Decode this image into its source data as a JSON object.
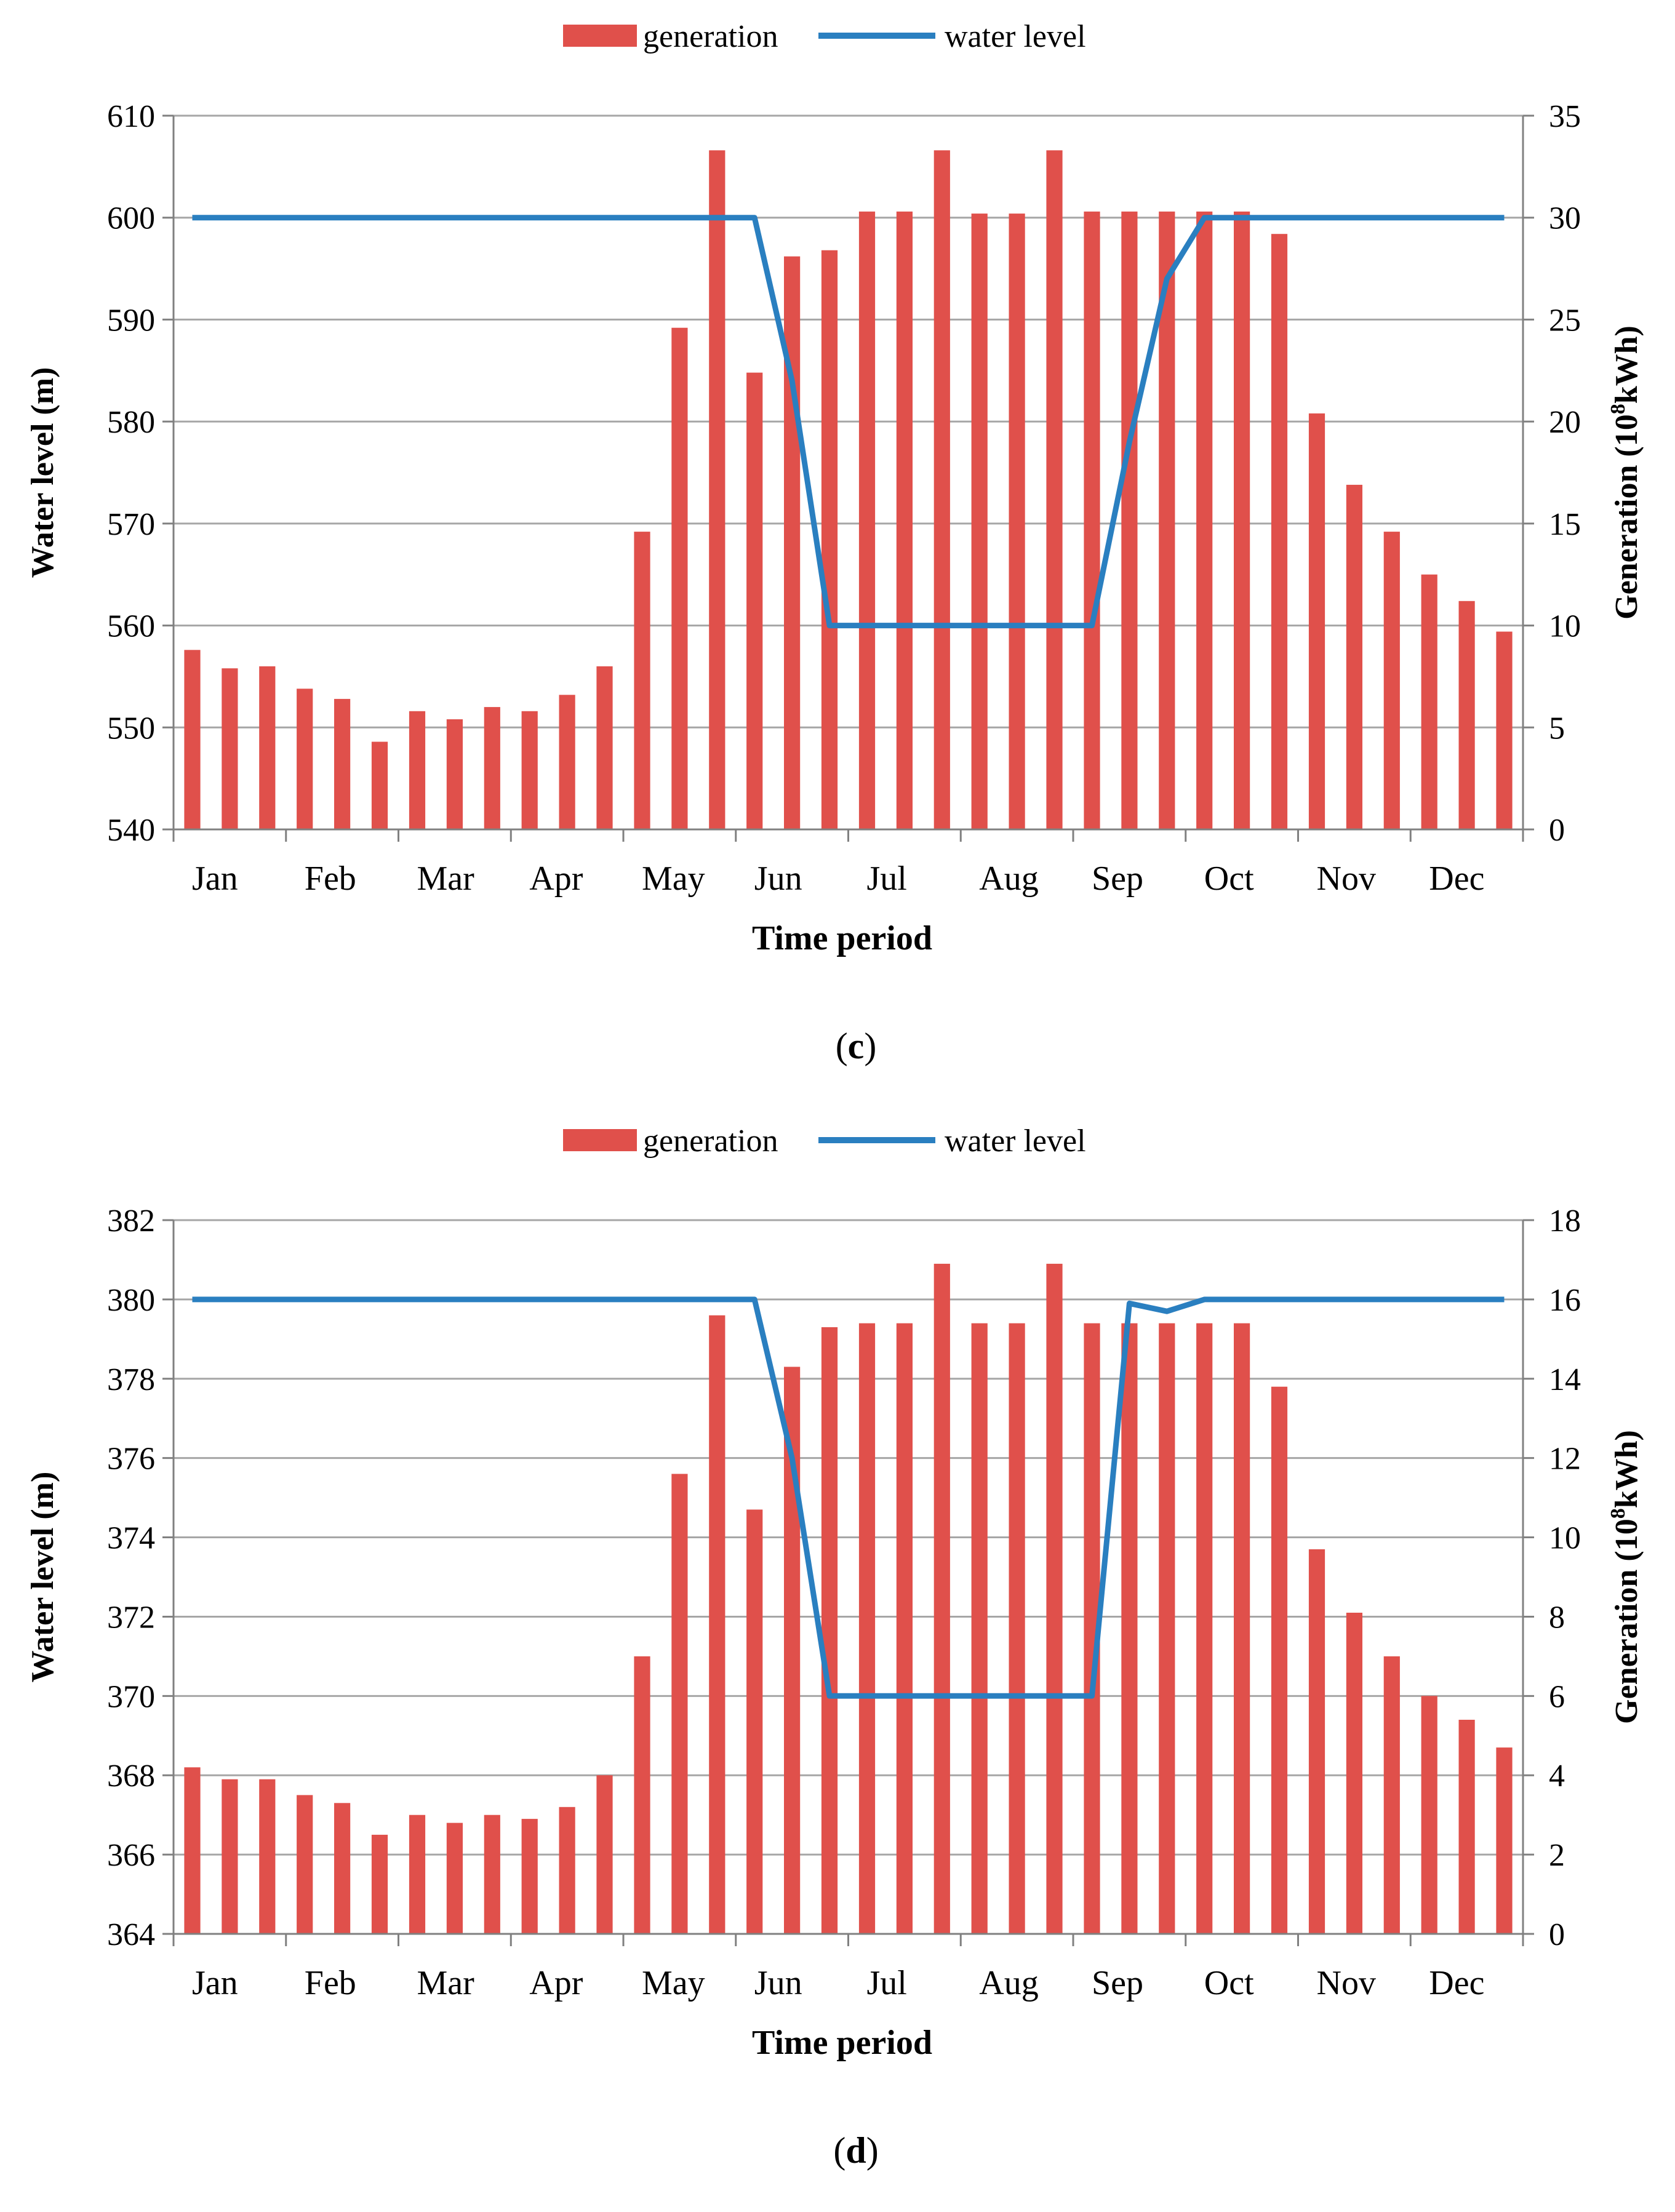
{
  "chart_data": [
    {
      "type": "bar+line",
      "panel_label": "c",
      "legend": {
        "bar": "generation",
        "line": "water level",
        "placement": "top-center"
      },
      "xlabel": "Time period",
      "ylabel_left": "Water level (m)",
      "ylabel_right_prefix": "Generation (10",
      "ylabel_right_sup": "8",
      "ylabel_right_suffix": "kWh)",
      "month_labels": [
        "Jan",
        "Feb",
        "Mar",
        "Apr",
        "May",
        "Jun",
        "Jul",
        "Aug",
        "Sep",
        "Oct",
        "Nov",
        "Dec"
      ],
      "periods_per_month": 3,
      "left_axis": {
        "min": 540,
        "max": 610,
        "step": 10
      },
      "right_axis": {
        "min": 0,
        "max": 35,
        "step": 5
      },
      "grid": true,
      "generation": [
        8.8,
        7.9,
        8.0,
        6.9,
        6.4,
        4.3,
        5.8,
        5.4,
        6.0,
        5.8,
        6.6,
        8.0,
        14.6,
        24.6,
        33.3,
        22.4,
        28.1,
        28.4,
        30.3,
        30.3,
        33.3,
        30.2,
        30.2,
        33.3,
        30.3,
        30.3,
        30.3,
        30.3,
        30.3,
        29.2,
        20.4,
        16.9,
        14.6,
        12.5,
        11.2,
        9.7
      ],
      "water_level": [
        600,
        600,
        600,
        600,
        600,
        600,
        600,
        600,
        600,
        600,
        600,
        600,
        600,
        600,
        600,
        600,
        584,
        560,
        560,
        560,
        560,
        560,
        560,
        560,
        560,
        578,
        594,
        600,
        600,
        600,
        600,
        600,
        600,
        600,
        600,
        600
      ],
      "colors": {
        "bar": "#e0504b",
        "line": "#2a7fc0",
        "grid": "#a6a6a6"
      }
    },
    {
      "type": "bar+line",
      "panel_label": "d",
      "legend": {
        "bar": "generation",
        "line": "water level",
        "placement": "top-center"
      },
      "xlabel": "Time period",
      "ylabel_left": "Water level (m)",
      "ylabel_right_prefix": "Generation (10",
      "ylabel_right_sup": "8",
      "ylabel_right_suffix": "kWh)",
      "month_labels": [
        "Jan",
        "Feb",
        "Mar",
        "Apr",
        "May",
        "Jun",
        "Jul",
        "Aug",
        "Sep",
        "Oct",
        "Nov",
        "Dec"
      ],
      "periods_per_month": 3,
      "left_axis": {
        "min": 364,
        "max": 382,
        "step": 2
      },
      "right_axis": {
        "min": 0,
        "max": 18,
        "step": 2
      },
      "grid": true,
      "generation": [
        4.2,
        3.9,
        3.9,
        3.5,
        3.3,
        2.5,
        3.0,
        2.8,
        3.0,
        2.9,
        3.2,
        4.0,
        7.0,
        11.6,
        15.6,
        10.7,
        14.3,
        15.3,
        15.4,
        15.4,
        16.9,
        15.4,
        15.4,
        16.9,
        15.4,
        15.4,
        15.4,
        15.4,
        15.4,
        13.8,
        9.7,
        8.1,
        7.0,
        6.0,
        5.4,
        4.7
      ],
      "water_level": [
        380,
        380,
        380,
        380,
        380,
        380,
        380,
        380,
        380,
        380,
        380,
        380,
        380,
        380,
        380,
        380,
        376,
        370,
        370,
        370,
        370,
        370,
        370,
        370,
        370,
        379.9,
        379.7,
        380,
        380,
        380,
        380,
        380,
        380,
        380,
        380,
        380
      ],
      "colors": {
        "bar": "#e0504b",
        "line": "#2a7fc0",
        "grid": "#a6a6a6"
      }
    }
  ]
}
